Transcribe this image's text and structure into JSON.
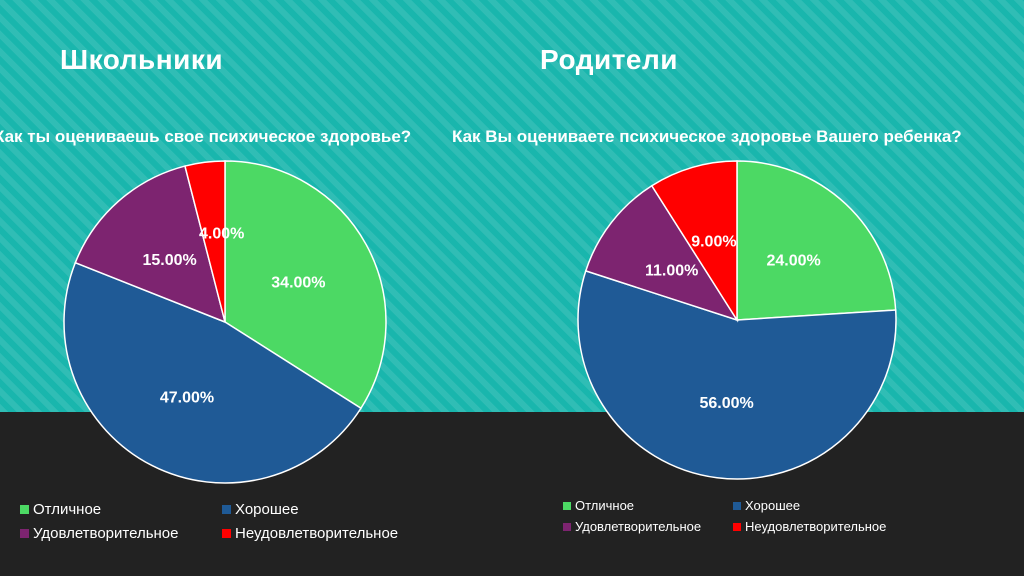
{
  "slide": {
    "colors": {
      "teal_background": "#19b6ad",
      "dark_band": "#222222",
      "text": "#ffffff",
      "slice_border": "#ffffff"
    }
  },
  "panels": [
    {
      "heading": "Школьники",
      "question": "Как ты оцениваешь свое психическое здоровье?"
    },
    {
      "heading": "Родители",
      "question": "Как Вы оцениваете психическое здоровье Вашего ребенка?"
    }
  ],
  "chart_data": [
    {
      "type": "pie",
      "title": "Как ты оцениваешь свое психическое здоровье?",
      "categories": [
        "Отличное",
        "Хорошее",
        "Удовлетворительное",
        "Неудовлетворительное"
      ],
      "values": [
        34.0,
        47.0,
        15.0,
        4.0
      ],
      "data_labels": [
        "34.00%",
        "47.00%",
        "15.00%",
        "4.00%"
      ],
      "colors": [
        "#4cd964",
        "#1f5a96",
        "#7d2470",
        "#ff0000"
      ],
      "legend": "bottom"
    },
    {
      "type": "pie",
      "title": "Как Вы оцениваете психическое здоровье Вашего ребенка?",
      "categories": [
        "Отличное",
        "Хорошее",
        "Удовлетворительное",
        "Неудовлетворительное"
      ],
      "values": [
        24.0,
        56.0,
        11.0,
        9.0
      ],
      "data_labels": [
        "24.00%",
        "56.00%",
        "11.00%",
        "9.00%"
      ],
      "colors": [
        "#4cd964",
        "#1f5a96",
        "#7d2470",
        "#ff0000"
      ],
      "legend": "bottom"
    }
  ]
}
